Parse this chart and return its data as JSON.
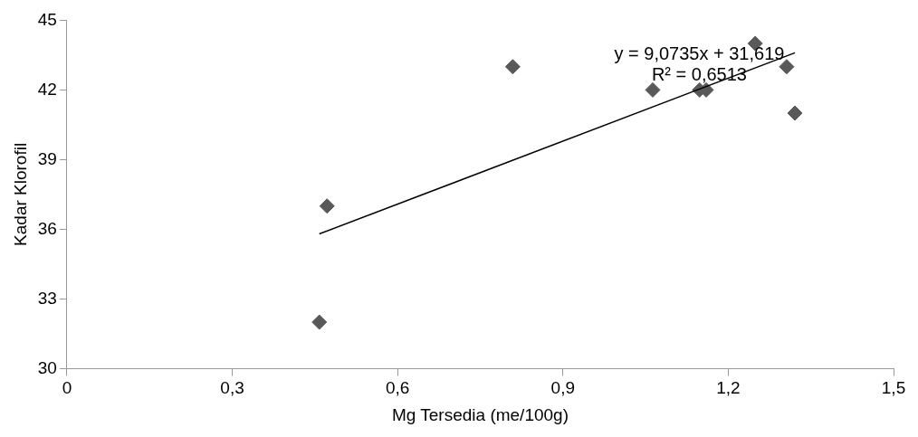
{
  "chart_data": {
    "type": "scatter",
    "xlabel": "Mg Tersedia (me/100g)",
    "ylabel": "Kadar Klorofil",
    "xlim": [
      0,
      1.5
    ],
    "xticks": [
      {
        "value": 0,
        "label": "0"
      },
      {
        "value": 0.3,
        "label": "0,3"
      },
      {
        "value": 0.6,
        "label": "0,6"
      },
      {
        "value": 0.9,
        "label": "0,9"
      },
      {
        "value": 1.2,
        "label": "1,2"
      },
      {
        "value": 1.5,
        "label": "1,5"
      }
    ],
    "ylim": [
      30,
      45
    ],
    "yticks": [
      30,
      33,
      36,
      39,
      42,
      45
    ],
    "grid": false,
    "legend": false,
    "marker": "diamond",
    "series": [
      {
        "color": "#595959",
        "x": [
          0.458,
          0.472,
          0.809,
          1.063,
          1.148,
          1.16,
          1.249,
          1.306,
          1.321
        ],
        "values": [
          32,
          37,
          43,
          42,
          42,
          42,
          44,
          43,
          41
        ]
      },
      {
        "type": "line",
        "color": "#000000",
        "marker": "none",
        "x": [
          0.458,
          1.321
        ],
        "values": [
          35.8,
          43.6
        ]
      }
    ],
    "annotations": [
      "y = 9,0735x + 31,619",
      "R² = 0,6513"
    ]
  }
}
